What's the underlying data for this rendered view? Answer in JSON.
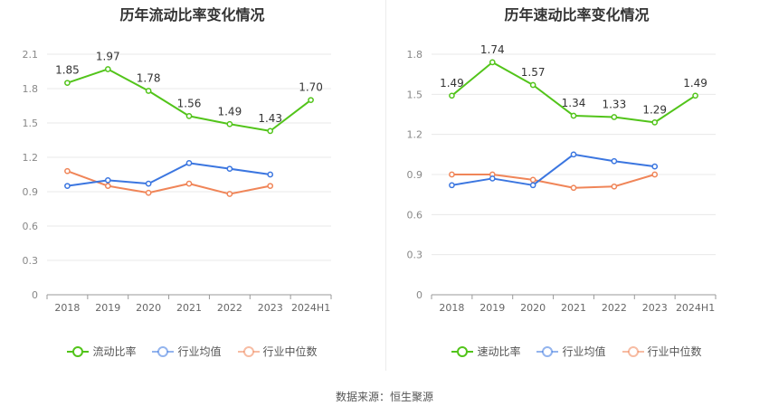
{
  "source": "数据来源：恒生聚源",
  "chart_data": [
    {
      "type": "line",
      "title": "历年流动比率变化情况",
      "categories": [
        "2018",
        "2019",
        "2020",
        "2021",
        "2022",
        "2023",
        "2024H1"
      ],
      "ylim": [
        0,
        2.1
      ],
      "yticks": [
        "0",
        "0.3",
        "0.6",
        "0.9",
        "1.2",
        "1.5",
        "1.8",
        "2.1"
      ],
      "grid": true,
      "legend_position": "bottom",
      "series": [
        {
          "name": "流动比率",
          "color": "#52c41a",
          "values": [
            1.85,
            1.97,
            1.78,
            1.56,
            1.49,
            1.43,
            1.7
          ],
          "labels": [
            "1.85",
            "1.97",
            "1.78",
            "1.56",
            "1.49",
            "1.43",
            "1.70"
          ]
        },
        {
          "name": "行业均值",
          "color": "#3b76e0",
          "values": [
            0.95,
            1.0,
            0.97,
            1.15,
            1.1,
            1.05,
            null
          ]
        },
        {
          "name": "行业中位数",
          "color": "#f08558",
          "values": [
            1.08,
            0.95,
            0.89,
            0.97,
            0.88,
            0.95,
            null
          ]
        }
      ]
    },
    {
      "type": "line",
      "title": "历年速动比率变化情况",
      "categories": [
        "2018",
        "2019",
        "2020",
        "2021",
        "2022",
        "2023",
        "2024H1"
      ],
      "ylim": [
        0,
        1.8
      ],
      "yticks": [
        "0",
        "0.3",
        "0.6",
        "0.9",
        "1.2",
        "1.5",
        "1.8"
      ],
      "grid": true,
      "legend_position": "bottom",
      "series": [
        {
          "name": "速动比率",
          "color": "#52c41a",
          "values": [
            1.49,
            1.74,
            1.57,
            1.34,
            1.33,
            1.29,
            1.49
          ],
          "labels": [
            "1.49",
            "1.74",
            "1.57",
            "1.34",
            "1.33",
            "1.29",
            "1.49"
          ]
        },
        {
          "name": "行业均值",
          "color": "#3b76e0",
          "values": [
            0.82,
            0.87,
            0.82,
            1.05,
            1.0,
            0.96,
            null
          ]
        },
        {
          "name": "行业中位数",
          "color": "#f08558",
          "values": [
            0.9,
            0.9,
            0.86,
            0.8,
            0.81,
            0.9,
            null
          ]
        }
      ]
    }
  ]
}
